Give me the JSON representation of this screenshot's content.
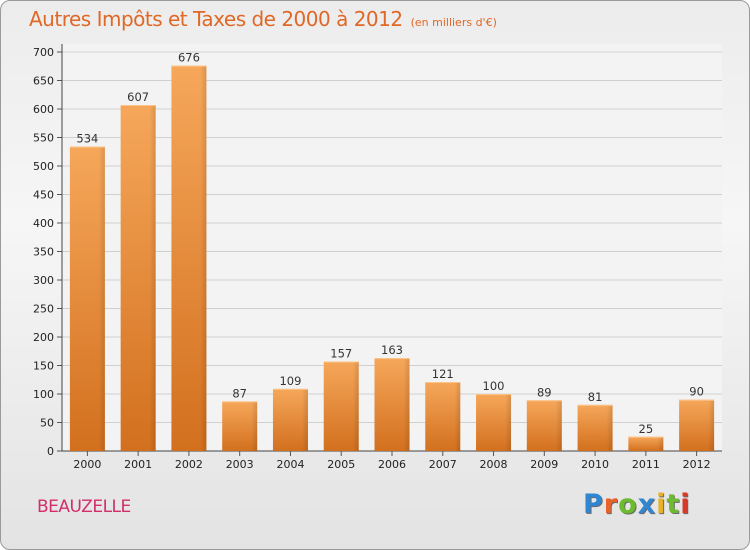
{
  "chart_data": {
    "type": "bar",
    "title": "Autres Impôts et Taxes de 2000 à 2012",
    "unit": "(en milliers d'€)",
    "categories": [
      "2000",
      "2001",
      "2002",
      "2003",
      "2004",
      "2005",
      "2006",
      "2007",
      "2008",
      "2009",
      "2010",
      "2011",
      "2012"
    ],
    "values": [
      534,
      607,
      676,
      87,
      109,
      157,
      163,
      121,
      100,
      89,
      81,
      25,
      90
    ],
    "xlabel": "",
    "ylabel": "",
    "ylim": [
      0,
      700
    ],
    "yticks": [
      0,
      50,
      100,
      150,
      200,
      250,
      300,
      350,
      400,
      450,
      500,
      550,
      600,
      650,
      700
    ],
    "grid": true,
    "bar_color": "#ee8c3a",
    "bar_color_light": "#f6a75a",
    "bar_color_dark": "#d2701e"
  },
  "footer": {
    "commune": "BEAUZELLE",
    "brand_letters": [
      {
        "ch": "P",
        "color": "#2f86d2"
      },
      {
        "ch": "r",
        "color": "#e8622a"
      },
      {
        "ch": "o",
        "color": "#6dbb2e"
      },
      {
        "ch": "x",
        "color": "#2f86d2"
      },
      {
        "ch": "i",
        "color": "#e8b12a"
      },
      {
        "ch": "t",
        "color": "#6dbb2e"
      },
      {
        "ch": "i",
        "color": "#d63b2a"
      }
    ]
  }
}
